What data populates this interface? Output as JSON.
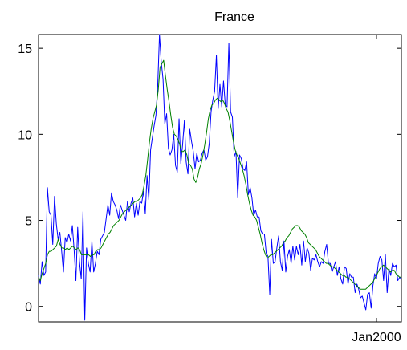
{
  "chart_data": {
    "type": "line",
    "title": "France",
    "xlabel": "",
    "ylabel": "",
    "ylim": [
      -0.9,
      15.8
    ],
    "yticks": [
      0,
      5,
      10,
      15
    ],
    "ytick_labels": [
      "0",
      "5",
      "10",
      "15"
    ],
    "xtick_labels": [
      "Jan2000"
    ],
    "xtick_positions": [
      190
    ],
    "grid": false,
    "legend": "none",
    "series": [
      {
        "color": "#0000ff",
        "values": [
          1.8,
          1.3,
          2.6,
          1.8,
          2.0,
          6.9,
          5.5,
          5.3,
          3.6,
          6.4,
          4.8,
          3.9,
          4.3,
          3.2,
          2.0,
          4.0,
          3.7,
          4.2,
          3.8,
          4.7,
          3.3,
          1.5,
          4.6,
          2.6,
          1.6,
          5.5,
          -0.8,
          3.4,
          2.5,
          2.0,
          3.8,
          2.0,
          2.5,
          3.2,
          3.0,
          3.9,
          4.1,
          4.3,
          5.1,
          5.9,
          5.3,
          6.6,
          6.1,
          5.9,
          5.6,
          5.1,
          5.9,
          5.6,
          5.3,
          5.0,
          6.1,
          5.5,
          6.0,
          6.3,
          5.2,
          6.0,
          5.3,
          6.1,
          6.0,
          6.7,
          5.4,
          7.6,
          6.2,
          9.1,
          9.8,
          10.5,
          11.1,
          12.8,
          15.8,
          14.2,
          13.2,
          10.6,
          11.2,
          9.2,
          8.8,
          9.1,
          10.0,
          8.2,
          7.8,
          10.9,
          8.3,
          9.4,
          10.8,
          8.4,
          7.7,
          10.3,
          9.6,
          9.0,
          8.0,
          8.9,
          8.4,
          8.5,
          8.9,
          9.1,
          8.5,
          8.7,
          9.5,
          11.3,
          12.0,
          12.5,
          14.6,
          11.5,
          12.9,
          11.6,
          13.1,
          11.7,
          11.6,
          15.3,
          11.3,
          11.0,
          8.7,
          9.0,
          6.3,
          8.8,
          8.6,
          8.0,
          7.9,
          8.4,
          6.5,
          6.9,
          6.3,
          5.3,
          5.6,
          5.2,
          5.2,
          4.4,
          4.2,
          4.2,
          3.1,
          2.9,
          0.7,
          3.9,
          2.5,
          2.6,
          3.4,
          4.1,
          2.6,
          2.1,
          3.8,
          2.0,
          2.9,
          3.3,
          2.5,
          3.5,
          2.7,
          3.5,
          3.0,
          3.6,
          2.4,
          3.8,
          2.6,
          3.4,
          3.1,
          2.1,
          2.8,
          2.7,
          3.0,
          2.6,
          2.3,
          2.6,
          2.5,
          3.2,
          3.6,
          2.5,
          2.5,
          2.0,
          2.3,
          2.6,
          1.8,
          2.3,
          1.6,
          1.3,
          2.3,
          2.2,
          1.3,
          1.9,
          1.7,
          1.7,
          0.8,
          1.3,
          1.0,
          0.5,
          0.6,
          0.2,
          -0.2,
          0.7,
          0.8,
          -0.1,
          1.2,
          1.9,
          1.6,
          2.5,
          2.9,
          2.7,
          1.5,
          3.0,
          0.8,
          2.2,
          1.8,
          2.5,
          2.3,
          2.4,
          1.5,
          1.7,
          1.6
        ]
      },
      {
        "color": "#008000",
        "values": [
          1.7,
          1.5,
          1.9,
          2.2,
          2.5,
          3.0,
          3.2,
          3.2,
          3.3,
          3.4,
          3.5,
          3.9,
          3.6,
          3.4,
          3.4,
          3.3,
          3.4,
          3.3,
          3.4,
          3.5,
          3.4,
          3.3,
          3.4,
          3.3,
          3.0,
          3.0,
          3.0,
          3.0,
          3.0,
          2.9,
          3.0,
          3.0,
          3.2,
          3.3,
          3.3,
          3.4,
          3.6,
          3.8,
          4.0,
          4.2,
          4.3,
          4.5,
          4.7,
          4.8,
          4.9,
          5.0,
          5.2,
          5.4,
          5.5,
          5.6,
          5.7,
          5.8,
          5.9,
          6.0,
          6.1,
          6.1,
          6.2,
          6.3,
          6.5,
          7.0,
          7.6,
          8.5,
          9.5,
          10.3,
          10.9,
          11.3,
          11.7,
          12.6,
          13.9,
          14.1,
          14.3,
          13.4,
          12.6,
          11.9,
          11.1,
          10.4,
          10.0,
          9.9,
          9.7,
          9.4,
          9.0,
          9.0,
          9.1,
          8.8,
          8.3,
          8.2,
          8.0,
          7.4,
          7.2,
          7.5,
          8.0,
          8.3,
          8.8,
          9.4,
          10.1,
          10.9,
          11.4,
          11.7,
          11.8,
          12.0,
          12.1,
          12.0,
          11.9,
          12.0,
          11.8,
          11.5,
          11.3,
          10.8,
          10.2,
          9.6,
          9.1,
          8.8,
          8.6,
          8.3,
          8.0,
          7.6,
          7.1,
          6.5,
          6.0,
          5.6,
          5.3,
          5.2,
          5.0,
          4.6,
          4.2,
          3.7,
          3.3,
          3.0,
          2.8,
          2.9,
          3.0,
          3.0,
          3.1,
          3.2,
          3.3,
          3.4,
          3.5,
          3.7,
          3.8,
          4.0,
          4.1,
          4.3,
          4.5,
          4.6,
          4.7,
          4.7,
          4.6,
          4.4,
          4.3,
          4.2,
          4.0,
          3.7,
          3.6,
          3.5,
          3.4,
          3.3,
          3.1,
          2.9,
          2.8,
          2.7,
          2.6,
          2.5,
          2.5,
          2.4,
          2.3,
          2.3,
          2.2,
          2.1,
          2.0,
          1.9,
          1.8,
          1.8,
          1.7,
          1.7,
          1.6,
          1.5,
          1.4,
          1.3,
          1.2,
          1.1,
          1.0,
          1.0,
          1.0,
          1.0,
          1.1,
          1.2,
          1.3,
          1.4,
          1.6,
          1.8,
          2.0,
          2.2,
          2.3,
          2.4,
          2.3,
          2.2,
          2.1,
          2.0,
          2.1,
          2.1,
          1.9,
          1.8,
          1.7,
          1.7
        ]
      }
    ]
  }
}
